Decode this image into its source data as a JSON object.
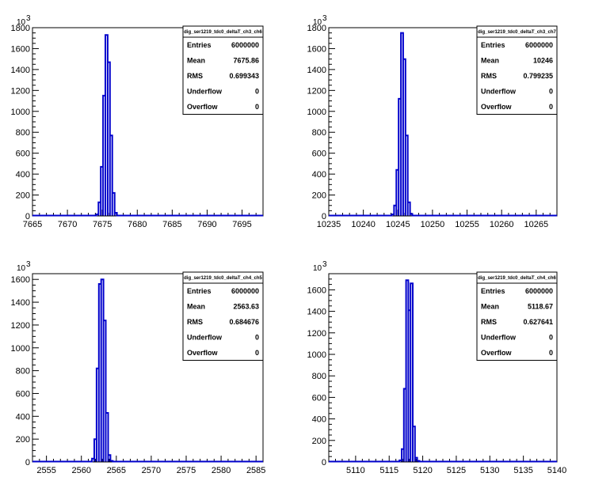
{
  "chart_data": [
    {
      "type": "bar",
      "title": "dig_ser1219_tdc0_deltaT_ch3_ch6",
      "y_exponent": "10",
      "y_exponent_power": "3",
      "xlim": [
        7665,
        7698
      ],
      "ylim": [
        0,
        1800
      ],
      "xticks": [
        "7665",
        "7670",
        "7675",
        "7680",
        "7685",
        "7690",
        "7695"
      ],
      "yticks": [
        "0",
        "200",
        "400",
        "600",
        "800",
        "1000",
        "1200",
        "1400",
        "1600",
        "1800"
      ],
      "bin_width": 0.33,
      "bins": [
        {
          "x": 7674.28,
          "y": 15
        },
        {
          "x": 7674.61,
          "y": 130
        },
        {
          "x": 7674.94,
          "y": 470
        },
        {
          "x": 7675.27,
          "y": 1150
        },
        {
          "x": 7675.6,
          "y": 1730
        },
        {
          "x": 7675.93,
          "y": 1470
        },
        {
          "x": 7676.26,
          "y": 770
        },
        {
          "x": 7676.59,
          "y": 220
        },
        {
          "x": 7676.92,
          "y": 30
        }
      ],
      "stats": [
        {
          "label": "Entries",
          "value": "6000000"
        },
        {
          "label": "Mean",
          "value": "7675.86"
        },
        {
          "label": "RMS",
          "value": "0.699343"
        },
        {
          "label": "Underflow",
          "value": "0"
        },
        {
          "label": "Overflow",
          "value": "0"
        }
      ],
      "line_color": "#0000cc"
    },
    {
      "type": "bar",
      "title": "dig_ser1219_tdc0_deltaT_ch3_ch7",
      "y_exponent": "10",
      "y_exponent_power": "3",
      "xlim": [
        10235,
        10268
      ],
      "ylim": [
        0,
        1800
      ],
      "xticks": [
        "10235",
        "10240",
        "10245",
        "10250",
        "10255",
        "10260",
        "10265"
      ],
      "yticks": [
        "0",
        "200",
        "400",
        "600",
        "800",
        "1000",
        "1200",
        "1400",
        "1600",
        "1800"
      ],
      "bin_width": 0.33,
      "bins": [
        {
          "x": 10244.28,
          "y": 15
        },
        {
          "x": 10244.61,
          "y": 100
        },
        {
          "x": 10244.94,
          "y": 440
        },
        {
          "x": 10245.27,
          "y": 1120
        },
        {
          "x": 10245.6,
          "y": 1750
        },
        {
          "x": 10245.93,
          "y": 1500
        },
        {
          "x": 10246.26,
          "y": 770
        },
        {
          "x": 10246.59,
          "y": 130
        },
        {
          "x": 10246.92,
          "y": 20
        }
      ],
      "stats": [
        {
          "label": "Entries",
          "value": "6000000"
        },
        {
          "label": "Mean",
          "value": "10246"
        },
        {
          "label": "RMS",
          "value": "0.799235"
        },
        {
          "label": "Underflow",
          "value": "0"
        },
        {
          "label": "Overflow",
          "value": "0"
        }
      ],
      "line_color": "#0000cc"
    },
    {
      "type": "bar",
      "title": "dig_ser1219_tdc0_deltaT_ch4_ch5",
      "y_exponent": "10",
      "y_exponent_power": "3",
      "xlim": [
        2553,
        2586
      ],
      "ylim": [
        0,
        1650
      ],
      "xticks": [
        "2555",
        "2560",
        "2565",
        "2570",
        "2575",
        "2580",
        "2585"
      ],
      "yticks": [
        "0",
        "200",
        "400",
        "600",
        "800",
        "1000",
        "1200",
        "1400",
        "1600"
      ],
      "bin_width": 0.33,
      "bins": [
        {
          "x": 2561.68,
          "y": 30
        },
        {
          "x": 2562.01,
          "y": 200
        },
        {
          "x": 2562.34,
          "y": 820
        },
        {
          "x": 2562.67,
          "y": 1560
        },
        {
          "x": 2563.0,
          "y": 1600
        },
        {
          "x": 2563.33,
          "y": 1240
        },
        {
          "x": 2563.66,
          "y": 430
        },
        {
          "x": 2563.99,
          "y": 60
        },
        {
          "x": 2564.32,
          "y": 10
        }
      ],
      "stats": [
        {
          "label": "Entries",
          "value": "6000000"
        },
        {
          "label": "Mean",
          "value": "2563.63"
        },
        {
          "label": "RMS",
          "value": "0.684676"
        },
        {
          "label": "Underflow",
          "value": "0"
        },
        {
          "label": "Overflow",
          "value": "0"
        }
      ],
      "line_color": "#0000cc"
    },
    {
      "type": "bar",
      "title": "dig_ser1219_tdc0_deltaT_ch4_ch6",
      "y_exponent": "10",
      "y_exponent_power": "3",
      "xlim": [
        5106,
        5140
      ],
      "ylim": [
        0,
        1750
      ],
      "xticks": [
        "5110",
        "5115",
        "5120",
        "5125",
        "5130",
        "5135",
        "5140"
      ],
      "yticks": [
        "0",
        "200",
        "400",
        "600",
        "800",
        "1000",
        "1200",
        "1400",
        "1600"
      ],
      "bin_width": 0.33,
      "bins": [
        {
          "x": 5116.7,
          "y": 15
        },
        {
          "x": 5117.03,
          "y": 120
        },
        {
          "x": 5117.36,
          "y": 680
        },
        {
          "x": 5117.69,
          "y": 1690
        },
        {
          "x": 5118.02,
          "y": 1410
        },
        {
          "x": 5118.35,
          "y": 1660
        },
        {
          "x": 5118.68,
          "y": 330
        },
        {
          "x": 5119.01,
          "y": 40
        },
        {
          "x": 5119.34,
          "y": 10
        }
      ],
      "stats": [
        {
          "label": "Entries",
          "value": "6000000"
        },
        {
          "label": "Mean",
          "value": "5118.67"
        },
        {
          "label": "RMS",
          "value": "0.627641"
        },
        {
          "label": "Underflow",
          "value": "0"
        },
        {
          "label": "Overflow",
          "value": "0"
        }
      ],
      "line_color": "#0000cc"
    }
  ]
}
